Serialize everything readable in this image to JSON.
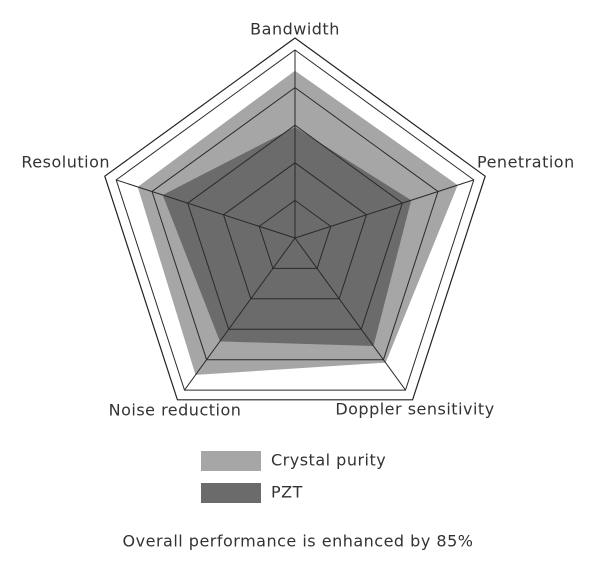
{
  "chart_data": {
    "type": "radar",
    "categories": [
      "Bandwidth",
      "Penetration",
      "Doppler sensitivity",
      "Noise reduction",
      "Resolution"
    ],
    "series": [
      {
        "name": "Crystal purity",
        "color": "#a6a6a6",
        "values": [
          89,
          91,
          82,
          90,
          88
        ]
      },
      {
        "name": "PZT",
        "color": "#6b6b6b",
        "values": [
          59,
          65,
          71,
          68,
          74
        ]
      }
    ],
    "rlim": [
      0,
      100
    ],
    "rticks": [
      20,
      40,
      60,
      80,
      100
    ],
    "grid": true,
    "legend": "bottom",
    "caption": "Overall performance is enhanced by 85%"
  }
}
